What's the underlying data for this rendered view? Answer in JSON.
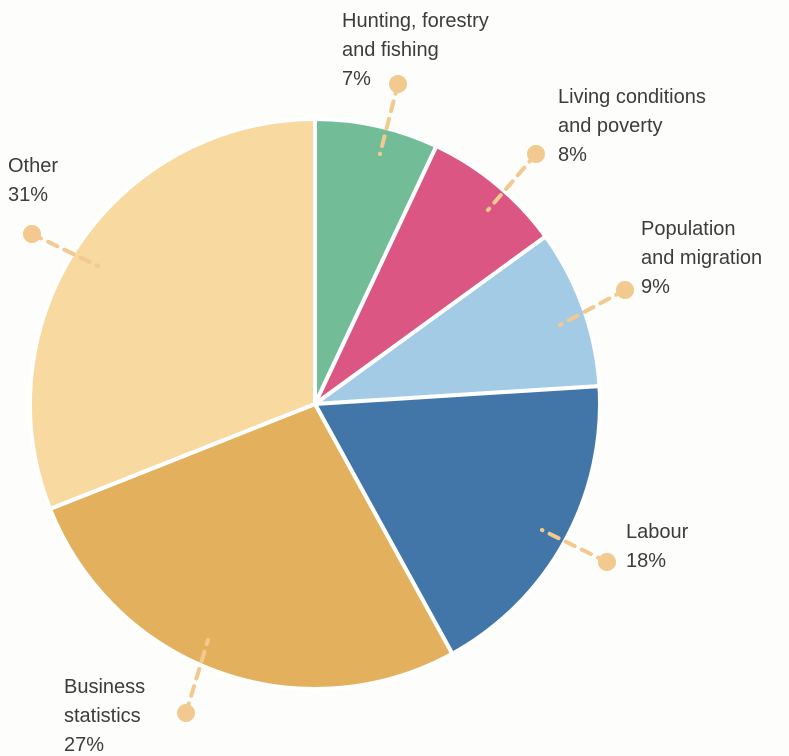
{
  "chart_data": {
    "type": "pie",
    "start_angle_deg": 0,
    "direction": "clockwise",
    "slices": [
      {
        "label_lines": [
          "Hunting, forestry",
          "and fishing"
        ],
        "value_label": "7%",
        "value": 7,
        "color": "#72bd98"
      },
      {
        "label_lines": [
          "Living conditions",
          "and poverty"
        ],
        "value_label": "8%",
        "value": 8,
        "color": "#db5682"
      },
      {
        "label_lines": [
          "Population",
          "and migration"
        ],
        "value_label": "9%",
        "value": 9,
        "color": "#a3cbe6"
      },
      {
        "label_lines": [
          "Labour"
        ],
        "value_label": "18%",
        "value": 18,
        "color": "#4276a9"
      },
      {
        "label_lines": [
          "Business",
          "statistics"
        ],
        "value_label": "27%",
        "value": 27,
        "color": "#e3b05d"
      },
      {
        "label_lines": [
          "Other"
        ],
        "value_label": "31%",
        "value": 31,
        "color": "#f8d9a0"
      }
    ],
    "leader_color": "#f2c98e"
  }
}
